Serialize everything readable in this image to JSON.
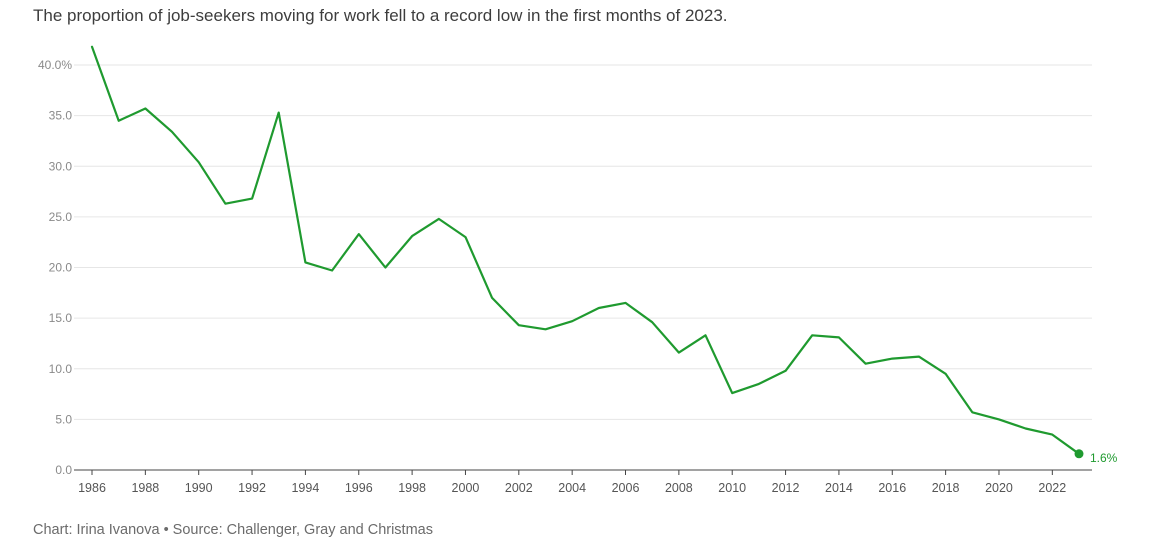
{
  "subtitle": "The proportion of job-seekers moving for work fell to a record low in the first months of 2023.",
  "footer": "Chart: Irina Ivanova • Source: Challenger, Gray and Christmas",
  "colors": {
    "line": "#1f9a2f",
    "grid": "#e6e6e6",
    "axis": "#444444"
  },
  "chart_data": {
    "type": "line",
    "title": "",
    "xlabel": "",
    "ylabel": "",
    "ylim": [
      0,
      40
    ],
    "xlim": [
      1986,
      2023
    ],
    "grid": true,
    "y_ticks": [
      {
        "value": 0,
        "label": "0.0"
      },
      {
        "value": 5,
        "label": "5.0"
      },
      {
        "value": 10,
        "label": "10.0"
      },
      {
        "value": 15,
        "label": "15.0"
      },
      {
        "value": 20,
        "label": "20.0"
      },
      {
        "value": 25,
        "label": "25.0"
      },
      {
        "value": 30,
        "label": "30.0"
      },
      {
        "value": 35,
        "label": "35.0"
      },
      {
        "value": 40,
        "label": "40.0%"
      }
    ],
    "x_ticks": [
      "1986",
      "1988",
      "1990",
      "1992",
      "1994",
      "1996",
      "1998",
      "2000",
      "2002",
      "2004",
      "2006",
      "2008",
      "2010",
      "2012",
      "2014",
      "2016",
      "2018",
      "2020",
      "2022"
    ],
    "series": [
      {
        "x": [
          1986,
          1987,
          1988,
          1989,
          1990,
          1991,
          1992,
          1993,
          1994,
          1995,
          1996,
          1997,
          1998,
          1999,
          2000,
          2001,
          2002,
          2003,
          2004,
          2005,
          2006,
          2007,
          2008,
          2009,
          2010,
          2011,
          2012,
          2013,
          2014,
          2015,
          2016,
          2017,
          2018,
          2019,
          2020,
          2021,
          2022,
          2023
        ],
        "values": [
          41.8,
          34.5,
          35.7,
          33.4,
          30.4,
          26.3,
          26.8,
          35.3,
          20.5,
          19.7,
          23.3,
          20.0,
          23.1,
          24.8,
          23.0,
          17.0,
          14.3,
          13.9,
          14.7,
          16.0,
          16.5,
          14.6,
          11.6,
          13.3,
          7.6,
          8.5,
          9.8,
          13.3,
          13.1,
          10.5,
          11.0,
          11.2,
          9.5,
          5.7,
          5.0,
          4.1,
          3.5,
          1.6
        ]
      }
    ],
    "end_label": "1.6%"
  }
}
